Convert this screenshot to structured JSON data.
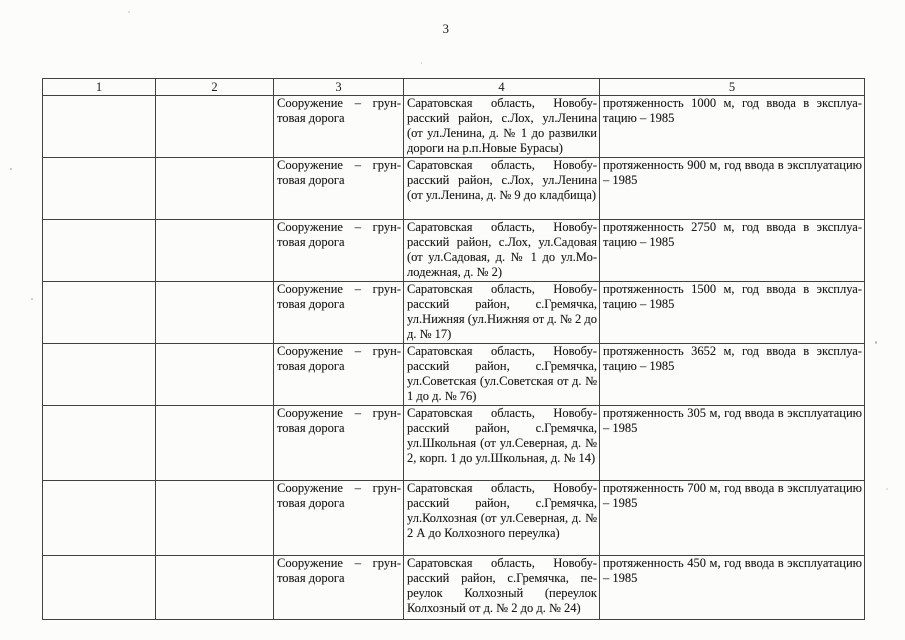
{
  "page": {
    "number": "3"
  },
  "table": {
    "headers": [
      "1",
      "2",
      "3",
      "4",
      "5"
    ],
    "rows": [
      {
        "col1": "",
        "col2": "",
        "col3": "Сооружение – грун­товая дорога",
        "col4": "Саратовская область, Новобу­расский район, с.Лох, ул.Ленина (от ул.Ленина, д. № 1 до развил­ки дороги на р.п.Новые Бурасы)",
        "col5": "протяженность 1000 м, год ввода в эксплуа­тацию – 1985"
      },
      {
        "col1": "",
        "col2": "",
        "col3": "Сооружение – грун­товая дорога",
        "col4": "Саратовская область, Новобу­расский район, с.Лох, ул.Ленина (от ул.Ленина, д. № 9 до клад­бища)",
        "col5": "протяженность 900 м, год ввода в эксплуата­цию – 1985"
      },
      {
        "col1": "",
        "col2": "",
        "col3": "Сооружение – грун­товая дорога",
        "col4": "Саратовская область, Новобу­расский район, с.Лох, ул.Садовая (от ул.Садовая, д. № 1 до ул.Мо­лодежная, д. № 2)",
        "col5": "протяженность 2750 м, год ввода в эксплуа­тацию – 1985"
      },
      {
        "col1": "",
        "col2": "",
        "col3": "Сооружение – грун­товая дорога",
        "col4": "Саратовская область, Новобу­расский район, с.Гремячка, ул.Нижняя (ул.Нижняя от д. № 2 до д. № 17)",
        "col5": "протяженность 1500 м, год ввода в эксплуа­тацию – 1985"
      },
      {
        "col1": "",
        "col2": "",
        "col3": "Сооружение – грун­товая дорога",
        "col4": "Саратовская область, Новобу­расский район, с.Гремячка, ул.Советская (ул.Советская от д. № 1 до д. № 76)",
        "col5": "протяженность 3652 м, год ввода в эксплуа­тацию – 1985"
      },
      {
        "col1": "",
        "col2": "",
        "col3": "Сооружение – грун­товая дорога",
        "col4": "Саратовская область, Новобу­расский район, с.Гремячка, ул.Школьная (от ул.Северная, д. № 2, корп. 1 до ул.Школьная, д. № 14)",
        "col5": "протяженность 305 м, год ввода в эксплуата­цию – 1985"
      },
      {
        "col1": "",
        "col2": "",
        "col3": "Сооружение – грун­товая дорога",
        "col4": "Саратовская область, Новобу­расский район, с.Гремячка, ул.Колхозная (от ул.Северная, д. № 2 А до Колхозного переул­ка)",
        "col5": "протяженность 700 м, год ввода в эксплуата­цию – 1985"
      },
      {
        "col1": "",
        "col2": "",
        "col3": "Сооружение – грун­товая дорога",
        "col4": "Саратовская область, Новобу­расский район, с.Гремячка, пе­реулок Колхозный (переулок Колхозный от д. № 2 до д. № 24)",
        "col5": "протяженность 450 м, год ввода в эксплуата­цию – 1985"
      }
    ]
  }
}
